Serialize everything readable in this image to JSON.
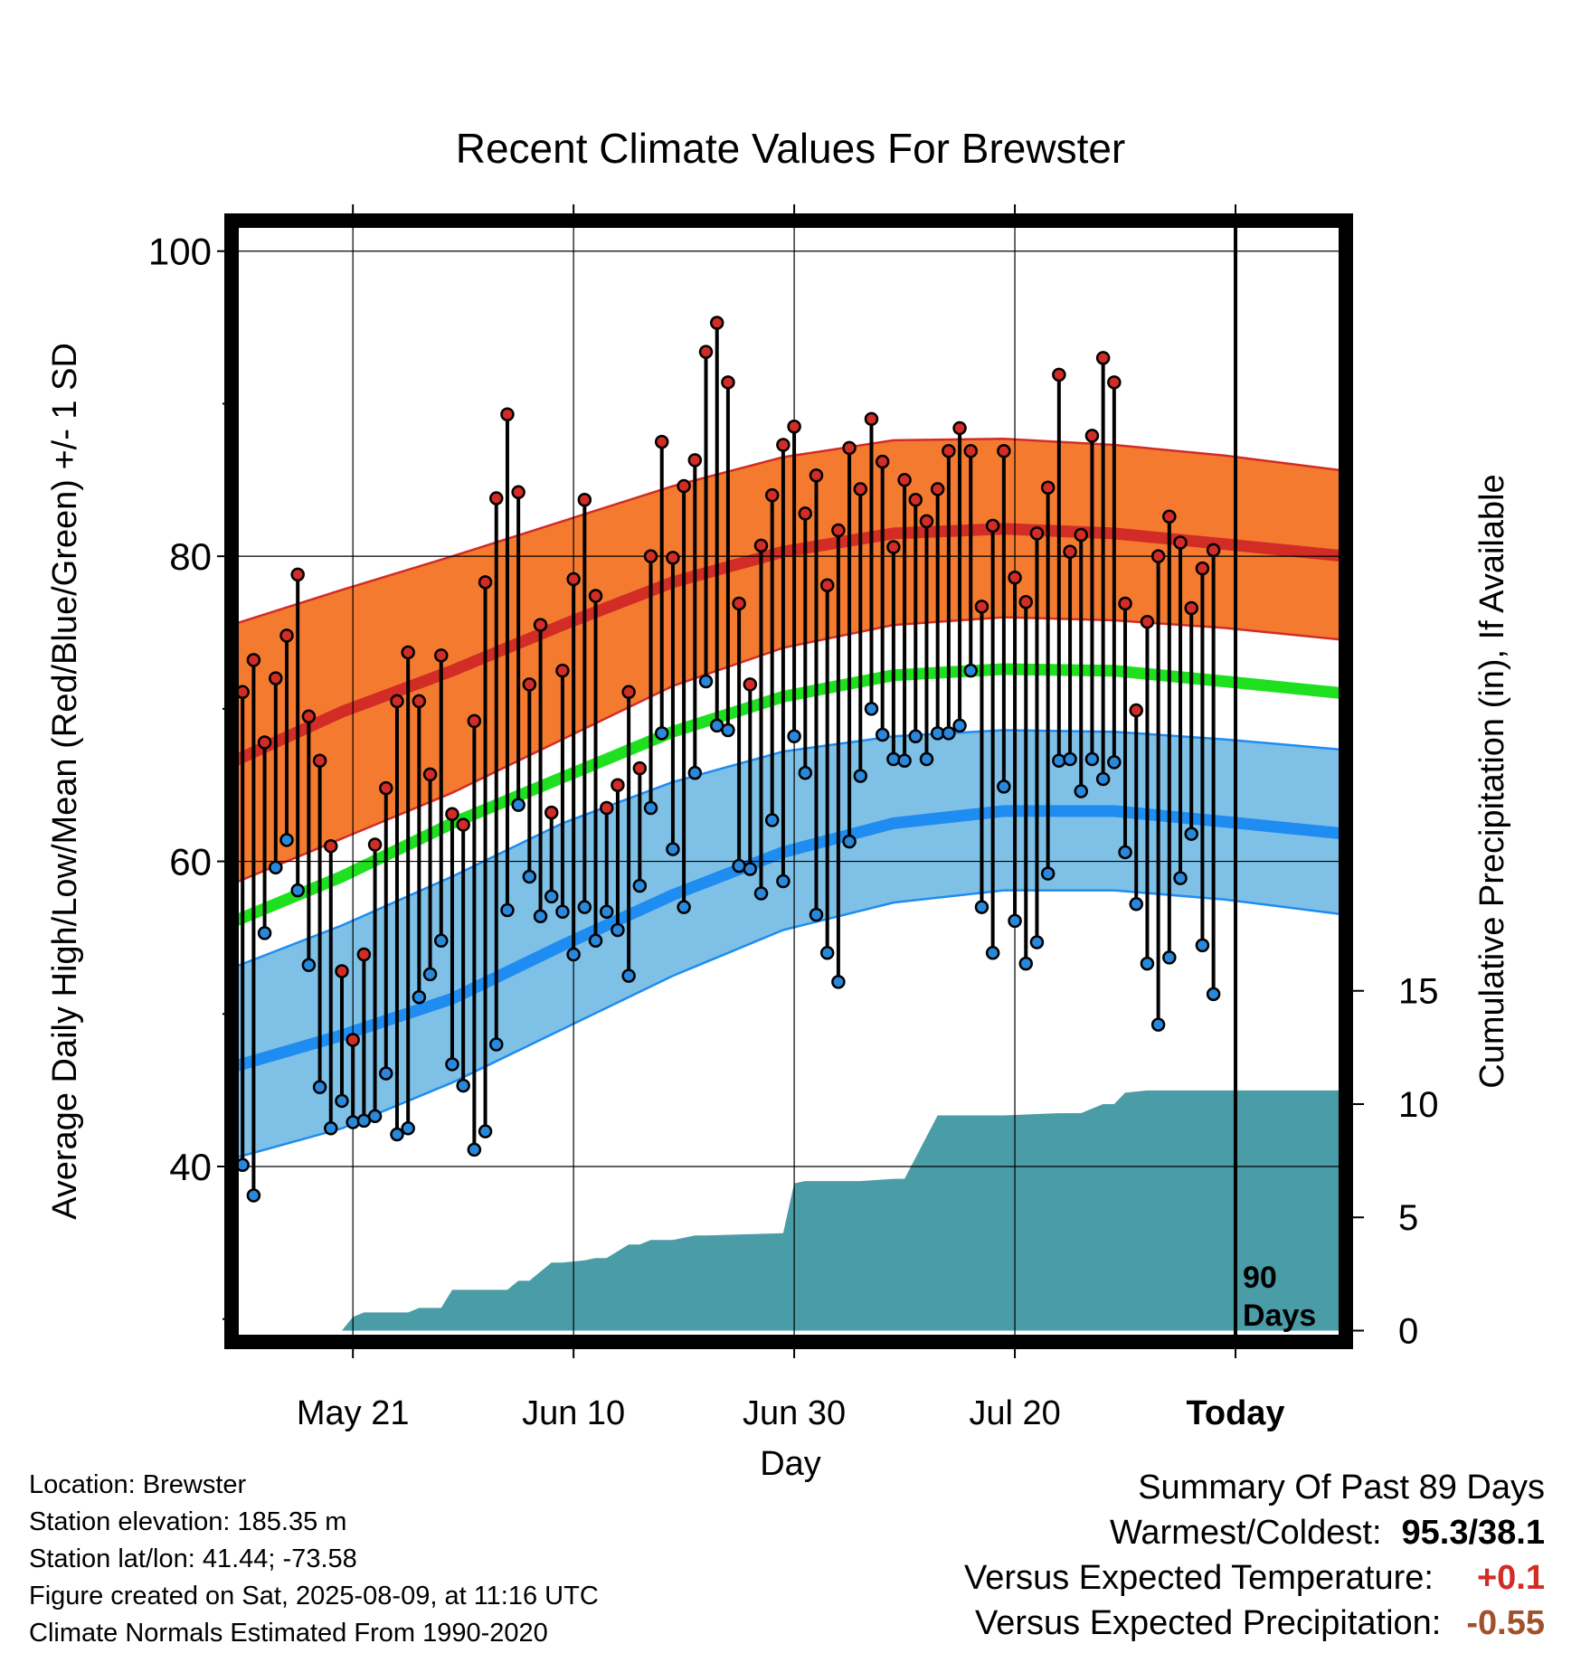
{
  "colors": {
    "high_band": "#f47a30",
    "high_line": "#d22c26",
    "mean_line": "#1ee01e",
    "low_band": "#7fc0e6",
    "low_line": "#1e8cf0",
    "precip": "#4a9ca6",
    "high_dot": "#d22c26",
    "low_dot": "#2a88dc",
    "temp_anom": "#d22c26",
    "precip_anom": "#a0522d"
  },
  "chart_data": {
    "type": "line",
    "title": "Recent Climate Values For Brewster",
    "xlabel": "Day",
    "ylabel": "Average Daily High/Low/Mean (Red/Blue/Green) +/- 1 SD",
    "y2label": "Cumulative Precipitation (in), If Available",
    "x_ticks": [
      "May 21",
      "Jun 10",
      "Jun 30",
      "Jul 20",
      "Today"
    ],
    "x_tick_days": [
      11,
      31,
      51,
      71,
      91
    ],
    "x_range": [
      0,
      101
    ],
    "ylim": [
      28.5,
      102
    ],
    "yticks": [
      40,
      60,
      80,
      100
    ],
    "y2lim": [
      -0.5,
      49
    ],
    "y2ticks": [
      0,
      5,
      10,
      15
    ],
    "grid": true,
    "today_label": "90\nDays",
    "normals": {
      "days": [
        0,
        10,
        20,
        30,
        40,
        50,
        60,
        70,
        80,
        90,
        101
      ],
      "high_mean": [
        66.5,
        69.8,
        72.5,
        75.5,
        78.3,
        80.3,
        81.5,
        81.8,
        81.5,
        80.8,
        80.0
      ],
      "high_sd_upper": [
        75.5,
        77.8,
        80.0,
        82.3,
        84.6,
        86.5,
        87.6,
        87.7,
        87.3,
        86.6,
        85.6
      ],
      "high_sd_lower": [
        58.5,
        61.5,
        64.5,
        68.0,
        71.5,
        74.0,
        75.5,
        76.0,
        75.8,
        75.3,
        74.5
      ],
      "mean": [
        56.0,
        59.0,
        62.5,
        65.5,
        68.5,
        70.8,
        72.2,
        72.6,
        72.5,
        71.8,
        71.0
      ],
      "low_mean": [
        46.5,
        48.6,
        51.0,
        54.5,
        57.8,
        60.6,
        62.5,
        63.3,
        63.3,
        62.6,
        61.8
      ],
      "low_sd_upper": [
        53.0,
        55.8,
        59.0,
        62.5,
        65.2,
        67.2,
        68.2,
        68.6,
        68.5,
        68.0,
        67.3
      ],
      "low_sd_lower": [
        40.5,
        42.5,
        45.5,
        49.0,
        52.5,
        55.5,
        57.3,
        58.1,
        58.1,
        57.5,
        56.5
      ]
    },
    "daily_days": [
      1,
      2,
      3,
      4,
      5,
      6,
      7,
      8,
      9,
      10,
      11,
      12,
      13,
      14,
      15,
      16,
      17,
      18,
      19,
      20,
      21,
      22,
      23,
      24,
      25,
      26,
      27,
      28,
      29,
      30,
      31,
      32,
      33,
      34,
      35,
      36,
      37,
      38,
      39,
      40,
      41,
      42,
      43,
      44,
      45,
      46,
      47,
      48,
      49,
      50,
      51,
      52,
      53,
      54,
      55,
      56,
      57,
      58,
      59,
      60,
      61,
      62,
      63,
      64,
      65,
      66,
      67,
      68,
      69,
      70,
      71,
      72,
      73,
      74,
      75,
      76,
      77,
      78,
      79,
      80,
      81,
      82,
      83,
      84,
      85,
      86,
      87,
      88,
      89,
      90
    ],
    "daily_high": [
      71.1,
      73.2,
      67.8,
      72.0,
      74.8,
      78.8,
      69.5,
      66.6,
      61.0,
      52.8,
      48.3,
      53.9,
      61.1,
      64.8,
      70.5,
      73.7,
      70.5,
      65.7,
      73.5,
      63.1,
      62.4,
      69.2,
      78.3,
      83.8,
      89.3,
      84.2,
      71.6,
      75.5,
      63.2,
      72.5,
      78.5,
      83.7,
      77.4,
      63.5,
      65.0,
      71.1,
      66.1,
      80.0,
      87.5,
      79.9,
      84.6,
      86.3,
      93.4,
      95.3,
      91.4,
      76.9,
      71.6,
      80.7,
      84.0,
      87.3,
      88.5,
      82.8,
      85.3,
      78.1,
      81.7,
      87.1,
      84.4,
      89.0,
      86.2,
      80.6,
      85.0,
      83.7,
      82.3,
      84.4,
      86.9,
      88.4,
      86.9,
      76.7,
      82.0,
      86.9,
      78.6,
      77.0,
      81.5,
      84.5,
      91.9,
      80.3,
      81.4,
      87.9,
      93.0,
      91.4,
      76.9,
      69.9,
      75.7,
      80.0,
      82.6,
      80.9,
      76.6,
      79.2,
      80.4,
      null
    ],
    "daily_low": [
      40.1,
      38.1,
      55.3,
      59.6,
      61.4,
      58.1,
      53.2,
      45.2,
      42.5,
      44.3,
      42.9,
      43.0,
      43.3,
      46.1,
      42.1,
      42.5,
      51.1,
      52.6,
      54.8,
      46.7,
      45.3,
      41.1,
      42.3,
      48.0,
      56.8,
      63.7,
      59.0,
      56.4,
      57.7,
      56.7,
      53.9,
      57.0,
      54.8,
      56.7,
      55.5,
      52.5,
      58.4,
      63.5,
      68.4,
      60.8,
      57.0,
      65.8,
      71.8,
      68.9,
      68.6,
      59.7,
      59.5,
      57.9,
      62.7,
      58.7,
      68.2,
      65.8,
      56.5,
      54.0,
      52.1,
      61.3,
      65.6,
      70.0,
      68.3,
      66.7,
      66.6,
      68.2,
      66.7,
      68.4,
      68.4,
      68.9,
      72.5,
      57.0,
      54.0,
      64.9,
      56.1,
      53.3,
      54.7,
      59.2,
      66.6,
      66.7,
      64.6,
      66.7,
      65.4,
      66.5,
      60.6,
      57.2,
      53.3,
      49.3,
      53.7,
      58.9,
      61.8,
      54.5,
      51.3,
      null
    ],
    "precip_days": [
      0,
      10,
      11,
      12,
      16,
      17,
      19,
      20,
      21,
      25,
      26,
      27,
      29,
      30,
      32,
      33,
      34,
      35,
      36,
      37,
      38,
      40,
      42,
      43,
      50,
      51,
      52,
      54,
      57,
      60,
      61,
      64,
      65,
      70,
      75,
      77,
      79,
      80,
      81,
      83,
      101
    ],
    "precip_cum": [
      0.0,
      0.0,
      0.6,
      0.8,
      0.8,
      1.0,
      1.0,
      1.8,
      1.8,
      1.8,
      2.2,
      2.2,
      3.0,
      3.0,
      3.1,
      3.2,
      3.2,
      3.5,
      3.8,
      3.8,
      4.0,
      4.0,
      4.2,
      4.2,
      4.3,
      6.5,
      6.6,
      6.6,
      6.6,
      6.7,
      6.7,
      9.5,
      9.5,
      9.5,
      9.6,
      9.6,
      10.0,
      10.0,
      10.5,
      10.6,
      10.6
    ]
  },
  "info": {
    "location": "Location: Brewster",
    "elevation": "Station elevation: 185.35 m",
    "latlon": "Station lat/lon: 41.44; -73.58",
    "created": "Figure created on Sat, 2025-08-09, at 11:16 UTC",
    "normals": "Climate Normals Estimated From 1990-2020"
  },
  "summary": {
    "title": "Summary Of Past 89 Days",
    "warmest_coldest_label": "Warmest/Coldest:",
    "warmest_coldest_value": "95.3/38.1",
    "temp_label": "Versus Expected Temperature:",
    "temp_value": "+0.1",
    "precip_label": "Versus Expected Precipitation:",
    "precip_value": "-0.55"
  }
}
